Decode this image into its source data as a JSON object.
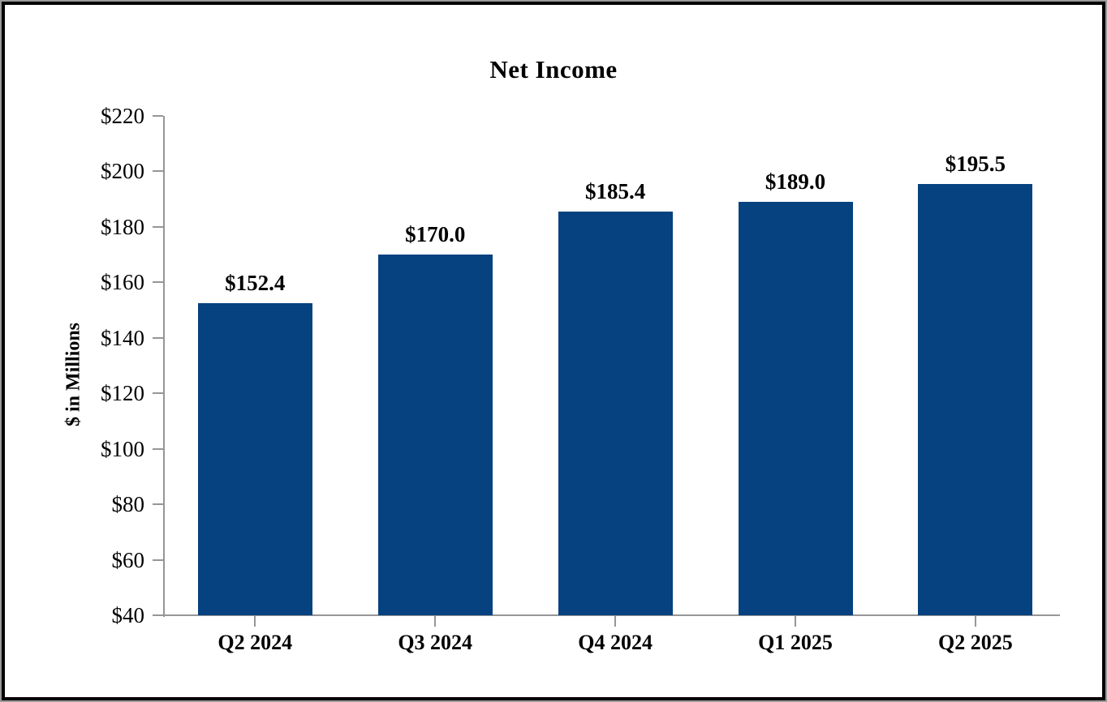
{
  "chart_data": {
    "type": "bar",
    "title": "Net Income",
    "ylabel": "$ in Millions",
    "xlabel": "",
    "categories": [
      "Q2 2024",
      "Q3 2024",
      "Q4 2024",
      "Q1 2025",
      "Q2 2025"
    ],
    "values": [
      152.4,
      170.0,
      185.4,
      189.0,
      195.5
    ],
    "value_labels": [
      "$152.4",
      "$170.0",
      "$185.4",
      "$189.0",
      "$195.5"
    ],
    "y_tick_values": [
      40,
      60,
      80,
      100,
      120,
      140,
      160,
      180,
      200,
      220
    ],
    "y_tick_labels": [
      "$40",
      "$60",
      "$80",
      "$100",
      "$120",
      "$140",
      "$160",
      "$180",
      "$200",
      "$220"
    ],
    "ylim": [
      40,
      220
    ],
    "grid": false,
    "legend": "none",
    "bar_color": "#064180",
    "axis_color": "#969696",
    "text_color": "#000000"
  }
}
